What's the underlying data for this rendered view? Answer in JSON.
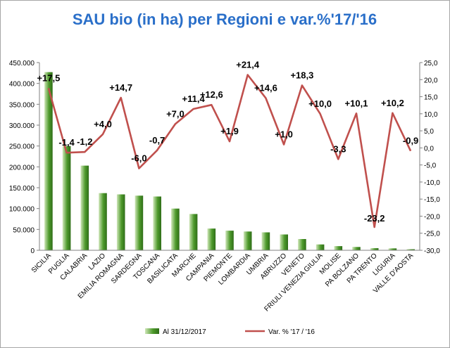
{
  "chart_data": {
    "type": "bar+line",
    "title": "SAU bio (in ha) per Regioni e var.%'17/'16",
    "categories": [
      "SICILIA",
      "PUGLIA",
      "CALABRIA",
      "LAZIO",
      "EMILIA ROMAGNA",
      "SARDEGNA",
      "TOSCANA",
      "BASILICATA",
      "MARCHE",
      "CAMPANIA",
      "PIEMONTE",
      "LOMBARDIA",
      "UMBRIA",
      "ABRUZZO",
      "VENETO",
      "FRIULI VENEZIA GIULIA",
      "MOLISE",
      "PA BOLZANO",
      "PA TRENTO",
      "LIGURIA",
      "VALLE D'AOSTA"
    ],
    "series": [
      {
        "name": "Al 31/12/2017",
        "kind": "bar",
        "axis": "left",
        "color": "#4e9a2c",
        "values": [
          427000,
          250000,
          203000,
          137000,
          134000,
          131000,
          129000,
          100000,
          87000,
          52000,
          47000,
          45000,
          43000,
          38000,
          27000,
          14000,
          10000,
          8000,
          5000,
          4500,
          2500
        ]
      },
      {
        "name": "Var. % '17 / '16",
        "kind": "line",
        "axis": "right",
        "color": "#c0504d",
        "values": [
          17.5,
          -1.4,
          -1.2,
          4.0,
          14.7,
          -6.0,
          -0.7,
          7.0,
          11.4,
          12.6,
          1.9,
          21.4,
          14.6,
          1.0,
          18.3,
          10.0,
          -3.3,
          10.1,
          -23.2,
          10.2,
          -0.9
        ],
        "data_labels": [
          "+17,5",
          "-1,4",
          "-1,2",
          "+4,0",
          "+14,7",
          "-6,0",
          "-0,7",
          "+7,0",
          "+11,4",
          "+12,6",
          "+1,9",
          "+21,4",
          "+14,6",
          "+1,0",
          "+18,3",
          "+10,0",
          "-3,3",
          "+10,1",
          "-23,2",
          "+10,2",
          "-0,9"
        ]
      }
    ],
    "left_axis": {
      "ylim": [
        0,
        450000
      ],
      "ticks": [
        "0",
        "50.000",
        "100.000",
        "150.000",
        "200.000",
        "250.000",
        "300.000",
        "350.000",
        "400.000",
        "450.000"
      ]
    },
    "right_axis": {
      "ylim": [
        -30,
        25
      ],
      "ticks": [
        "-30,0",
        "-25,0",
        "-20,0",
        "-15,0",
        "-10,0",
        "-5,0",
        "0,0",
        "5,0",
        "10,0",
        "15,0",
        "20,0",
        "25,0"
      ]
    },
    "grid": false,
    "legend_position": "bottom"
  }
}
